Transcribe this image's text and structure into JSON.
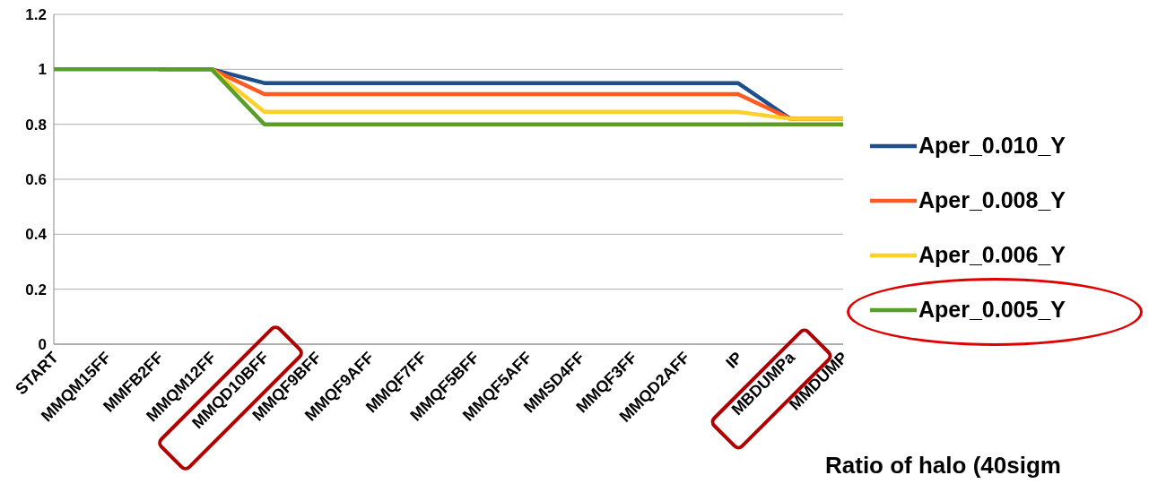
{
  "chart_data": {
    "type": "line",
    "categories": [
      "START",
      "MMQM15FF",
      "MMFB2FF",
      "MMQM12FF",
      "MMQD10BFF",
      "MMQF9BFF",
      "MMQF9AFF",
      "MMQF7FF",
      "MMQF5BFF",
      "MMQF5AFF",
      "MMSD4FF",
      "MMQF3FF",
      "MMQD2AFF",
      "IP",
      "MBDUMPa",
      "MMDUMP"
    ],
    "series": [
      {
        "name": "Aper_0.010_Y",
        "color": "#1f4e8c",
        "values": [
          null,
          null,
          1,
          1,
          0.95,
          0.95,
          0.95,
          0.95,
          0.95,
          0.95,
          0.95,
          0.95,
          0.95,
          0.95,
          0.82,
          0.82
        ]
      },
      {
        "name": "Aper_0.008_Y",
        "color": "#ff5a1f",
        "values": [
          null,
          null,
          1,
          1,
          0.91,
          0.91,
          0.91,
          0.91,
          0.91,
          0.91,
          0.91,
          0.91,
          0.91,
          0.91,
          0.82,
          0.82
        ]
      },
      {
        "name": "Aper_0.006_Y",
        "color": "#ffd02a",
        "values": [
          null,
          null,
          1,
          1,
          0.845,
          0.845,
          0.845,
          0.845,
          0.845,
          0.845,
          0.845,
          0.845,
          0.845,
          0.845,
          0.82,
          0.82
        ]
      },
      {
        "name": "Aper_0.005_Y",
        "color": "#5a9e2a",
        "values": [
          1,
          1,
          1,
          1,
          0.8,
          0.8,
          0.8,
          0.8,
          0.8,
          0.8,
          0.8,
          0.8,
          0.8,
          0.8,
          0.8,
          0.8
        ]
      }
    ],
    "ylim": [
      0,
      1.2
    ],
    "yticks": [
      0,
      0.2,
      0.4,
      0.6,
      0.8,
      1,
      1.2
    ],
    "grid": "y",
    "legend": "right",
    "marker": "none",
    "line_style": "solid",
    "annotations": [
      "Ratio of halo (40sigm"
    ]
  }
}
